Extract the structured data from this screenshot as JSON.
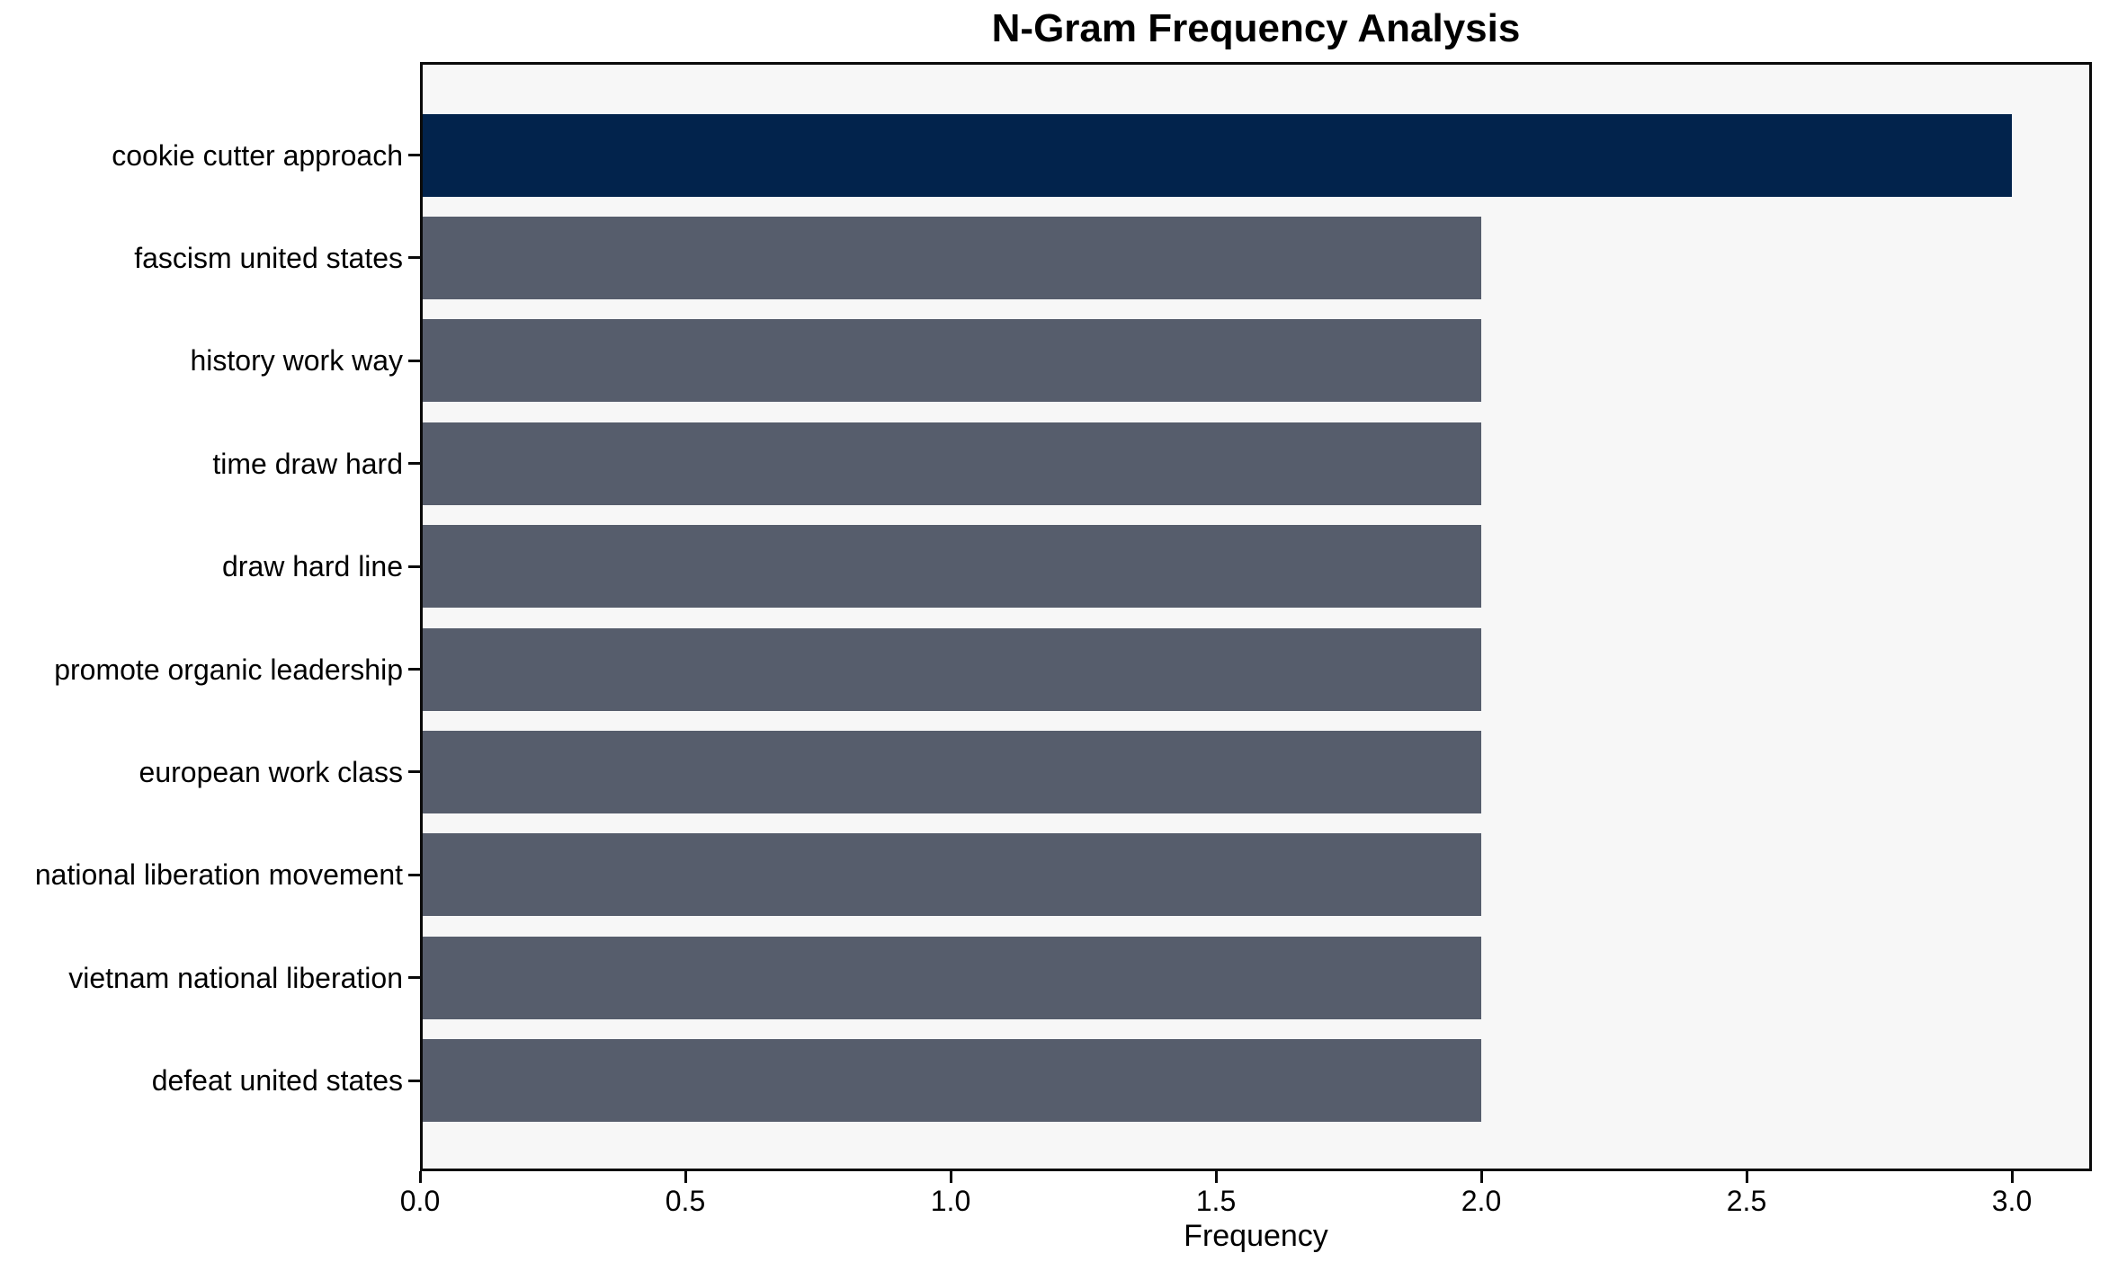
{
  "chart_data": {
    "type": "bar",
    "orientation": "horizontal",
    "title": "N-Gram Frequency Analysis",
    "xlabel": "Frequency",
    "ylabel": "",
    "categories": [
      "cookie cutter approach",
      "fascism united states",
      "history work way",
      "time draw hard",
      "draw hard line",
      "promote organic leadership",
      "european work class",
      "national liberation movement",
      "vietnam national liberation",
      "defeat united states"
    ],
    "values": [
      3,
      2,
      2,
      2,
      2,
      2,
      2,
      2,
      2,
      2
    ],
    "bar_colors": [
      "#02234C",
      "#565D6C",
      "#565D6C",
      "#565D6C",
      "#565D6C",
      "#565D6C",
      "#565D6C",
      "#565D6C",
      "#565D6C",
      "#565D6C"
    ],
    "xlim": [
      0.0,
      3.15
    ],
    "xticks": [
      {
        "label": "0.0",
        "value": 0.0
      },
      {
        "label": "0.5",
        "value": 0.5
      },
      {
        "label": "1.0",
        "value": 1.0
      },
      {
        "label": "1.5",
        "value": 1.5
      },
      {
        "label": "2.0",
        "value": 2.0
      },
      {
        "label": "2.5",
        "value": 2.5
      },
      {
        "label": "3.0",
        "value": 3.0
      }
    ],
    "grid": false,
    "legend": null,
    "colors": {
      "bar_highlight": "#02234C",
      "bar_default": "#565D6C",
      "plot_background": "#F7F7F7",
      "figure_background": "#FFFFFF",
      "spine": "#0A0A0A",
      "text": "#000000"
    }
  }
}
